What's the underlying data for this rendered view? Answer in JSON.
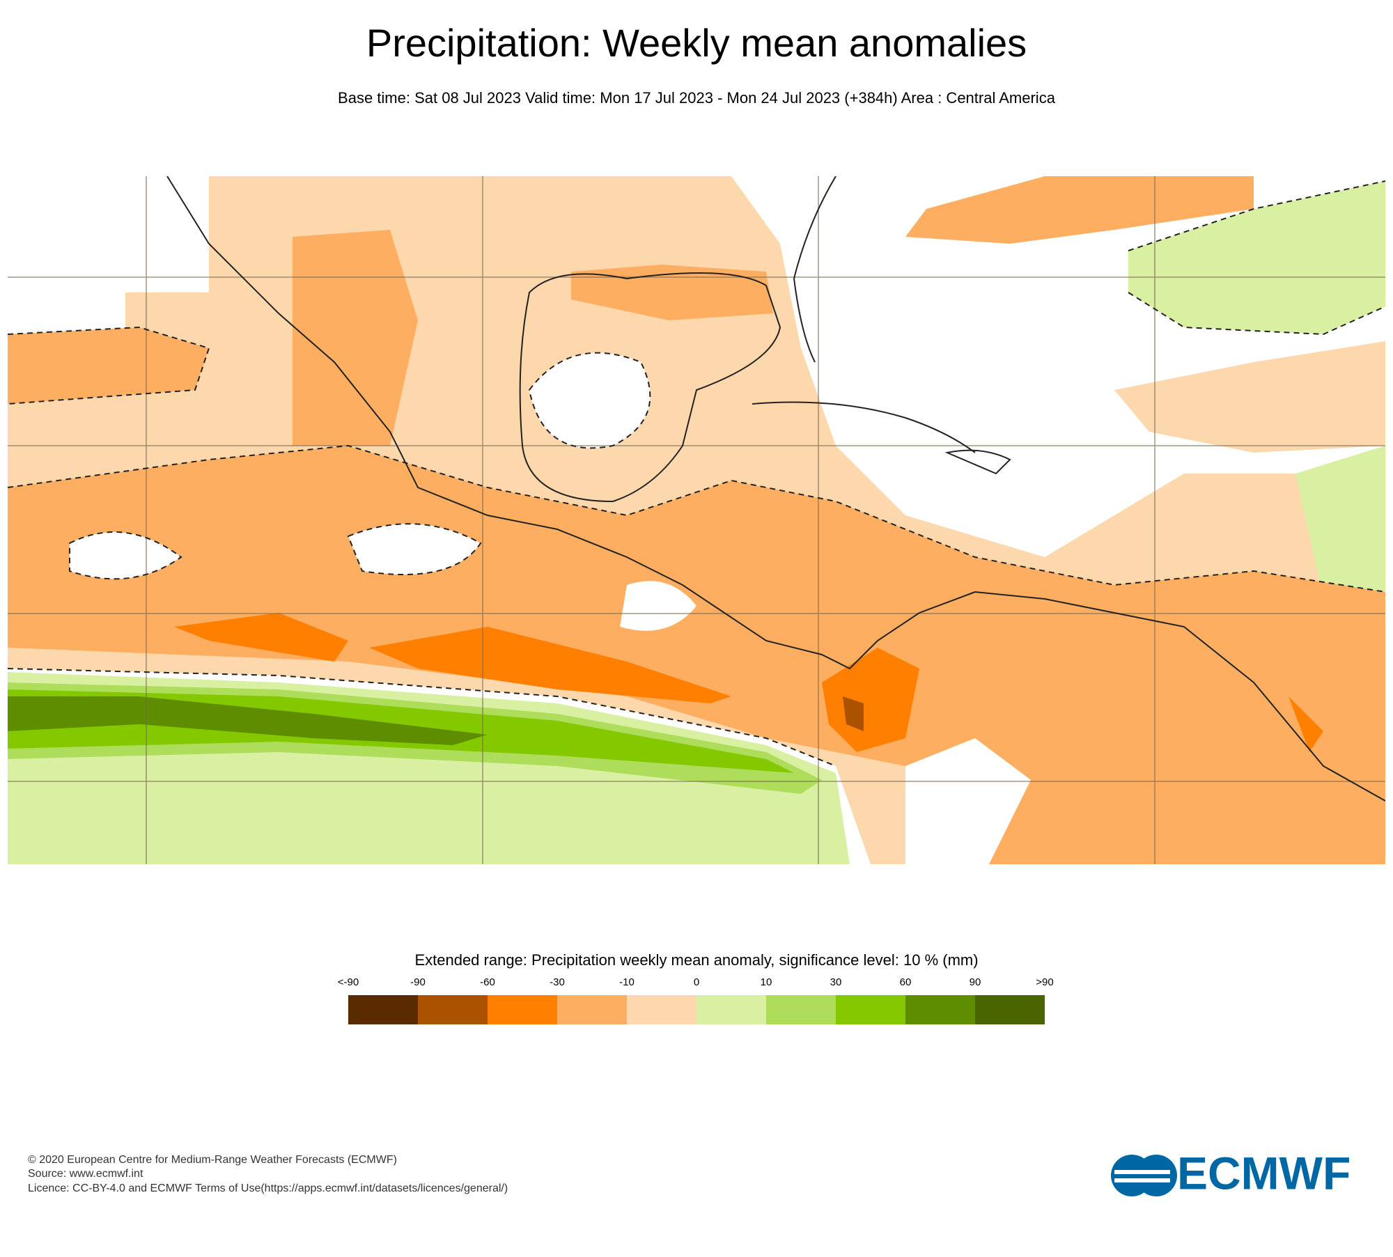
{
  "header": {
    "title": "Precipitation: Weekly mean anomalies",
    "subtitle": "Base time: Sat 08 Jul 2023 Valid time: Mon 17 Jul 2023 - Mon 24 Jul 2023 (+384h) Area : Central America"
  },
  "legend": {
    "title": "Extended range: Precipitation weekly mean anomaly, significance level: 10 % (mm)",
    "labels": [
      "<-90",
      "-90",
      "-60",
      "-30",
      "-10",
      "0",
      "10",
      "30",
      "60",
      "90",
      ">90"
    ],
    "colors": [
      "#5a2a00",
      "#ab5200",
      "#ff7f00",
      "#fdae61",
      "#fed8ad",
      "#d9f0a3",
      "#addd5b",
      "#84c900",
      "#5e8e00",
      "#4a6500"
    ]
  },
  "footer": {
    "lines": [
      "© 2020 European Centre for Medium-Range Weather Forecasts (ECMWF)",
      "Source: www.ecmwf.int",
      "Licence: CC-BY-4.0 and ECMWF Terms of Use(https://apps.ecmwf.int/datasets/licences/general/)"
    ],
    "logo": "ECMWF"
  }
}
